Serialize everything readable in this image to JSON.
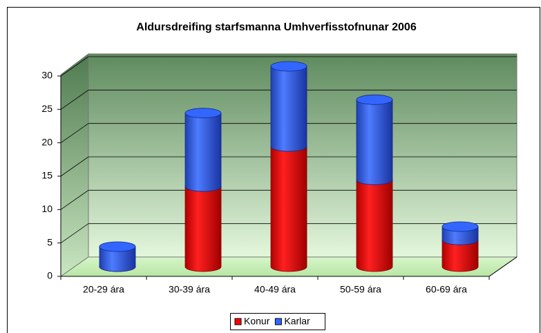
{
  "chart_data": {
    "type": "bar3d_stacked",
    "title": "Aldursdreifing starfsmanna Umhverfisstofnunar 2006",
    "categories": [
      "20-29 ára",
      "30-39 ára",
      "40-49 ára",
      "50-59 ára",
      "60-69 ára"
    ],
    "series": [
      {
        "name": "Konur",
        "color": "#ff0000",
        "values": [
          0,
          12,
          18,
          13,
          4
        ]
      },
      {
        "name": "Karlar",
        "color": "#3366ff",
        "values": [
          3,
          11,
          12,
          12,
          2
        ]
      }
    ],
    "ylim": [
      0,
      30
    ],
    "yticks": [
      0,
      5,
      10,
      15,
      20,
      25,
      30
    ],
    "grid": true,
    "legend": "bottom"
  }
}
